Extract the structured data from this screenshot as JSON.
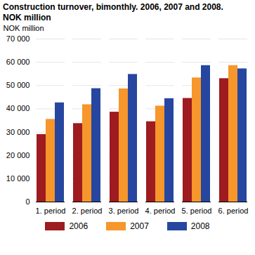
{
  "chart_data": {
    "type": "bar",
    "title": "Construction turnover, bimonthly. 2006, 2007 and 2008.",
    "subtitle": "NOK million",
    "y_label": "NOK million",
    "categories": [
      "1. period",
      "2. period",
      "3. period",
      "4. period",
      "5. period",
      "6. period"
    ],
    "series": [
      {
        "name": "2006",
        "color": "#9e1b1f",
        "values": [
          29000,
          33700,
          38600,
          34500,
          44500,
          53000
        ]
      },
      {
        "name": "2007",
        "color": "#f6962b",
        "values": [
          35500,
          41800,
          48600,
          41200,
          53300,
          58600
        ]
      },
      {
        "name": "2008",
        "color": "#27469f",
        "values": [
          42600,
          48700,
          54800,
          44400,
          58600,
          57200
        ]
      }
    ],
    "ylim": [
      0,
      70000
    ],
    "yticks": [
      0,
      {
        "value": 10000,
        "label": "10 000"
      },
      {
        "value": 20000,
        "label": "20 000"
      },
      {
        "value": 30000,
        "label": "30 000"
      },
      {
        "value": 40000,
        "label": "40 000"
      },
      {
        "value": 50000,
        "label": "50 000"
      },
      {
        "value": 60000,
        "label": "60 000"
      },
      {
        "value": 70000,
        "label": "70 000"
      }
    ],
    "grid": true,
    "legend": "bottom"
  }
}
